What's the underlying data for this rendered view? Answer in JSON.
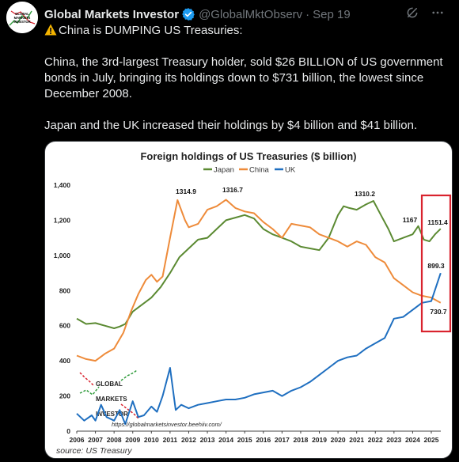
{
  "tweet": {
    "display_name": "Global Markets Investor",
    "handle": "@GlobalMktObserv",
    "separator": "·",
    "date": "Sep 19",
    "paragraphs": [
      "China is DUMPING US Treasuries:",
      "China, the 3rd-largest Treasury holder, sold $26 BILLION of US government bonds in July, bringing its holdings down to $731 billion, the lowest since December 2008.",
      "Japan and the UK increased their holdings by $4 billion and $41 billion."
    ],
    "icons": [
      "warning-icon",
      "verified-badge-icon",
      "grok-icon",
      "more-icon"
    ],
    "avatar_text": [
      "GLOBAL",
      "MARKETS",
      "INVESTOR"
    ]
  },
  "colors": {
    "background": "#000000",
    "text": "#e7e9ea",
    "muted": "#71767b",
    "verified": "#1d9bf0",
    "japan": "#5b8a32",
    "china": "#ee8b3a",
    "uk": "#1f6fc0",
    "highlight_box": "#d9232e"
  },
  "chart_data": {
    "type": "line",
    "title": "Foreign holdings of US Treasuries ($ billion)",
    "legend": [
      "Japan",
      "China",
      "UK"
    ],
    "legend_position": "top",
    "ylim": [
      0,
      1400
    ],
    "yticks": [
      "0",
      "200",
      "400",
      "600",
      "800",
      "1,000",
      "1,200",
      "1,400"
    ],
    "xticks": [
      "2006",
      "2007",
      "2008",
      "2009",
      "2010",
      "2011",
      "2012",
      "2013",
      "2014",
      "2015",
      "2016",
      "2017",
      "2018",
      "2019",
      "2020",
      "2021",
      "2022",
      "2023",
      "2024",
      "2025"
    ],
    "grid": false,
    "series": [
      {
        "name": "Japan",
        "x": [
          2006.0,
          2006.5,
          2007.0,
          2007.5,
          2008.0,
          2008.3,
          2008.6,
          2009.0,
          2009.5,
          2010.0,
          2010.5,
          2011.0,
          2011.5,
          2012.0,
          2012.5,
          2013.0,
          2013.5,
          2014.0,
          2014.5,
          2015.0,
          2015.5,
          2016.0,
          2016.5,
          2017.0,
          2017.5,
          2018.0,
          2018.5,
          2019.0,
          2019.5,
          2020.0,
          2020.3,
          2020.6,
          2021.0,
          2021.5,
          2021.9,
          2022.3,
          2022.7,
          2023.0,
          2023.5,
          2024.0,
          2024.3,
          2024.6,
          2024.9,
          2025.2,
          2025.5
        ],
        "y": [
          640,
          610,
          615,
          600,
          585,
          595,
          610,
          680,
          720,
          760,
          820,
          900,
          990,
          1040,
          1090,
          1100,
          1150,
          1200,
          1215,
          1230,
          1210,
          1150,
          1120,
          1100,
          1080,
          1050,
          1040,
          1030,
          1100,
          1230,
          1280,
          1270,
          1260,
          1290,
          1310,
          1230,
          1150,
          1080,
          1100,
          1120,
          1167,
          1090,
          1080,
          1120,
          1151.4
        ]
      },
      {
        "name": "China",
        "x": [
          2006.0,
          2006.5,
          2007.0,
          2007.5,
          2008.0,
          2008.5,
          2008.9,
          2009.3,
          2009.7,
          2010.0,
          2010.3,
          2010.6,
          2011.0,
          2011.4,
          2011.8,
          2012.0,
          2012.5,
          2013.0,
          2013.5,
          2014.0,
          2014.5,
          2015.0,
          2015.5,
          2016.0,
          2016.5,
          2017.0,
          2017.5,
          2018.0,
          2018.5,
          2019.0,
          2019.5,
          2020.0,
          2020.5,
          2021.0,
          2021.5,
          2022.0,
          2022.5,
          2023.0,
          2023.5,
          2024.0,
          2024.5,
          2025.0,
          2025.5
        ],
        "y": [
          430,
          410,
          400,
          440,
          470,
          560,
          680,
          780,
          860,
          890,
          850,
          880,
          1100,
          1314.9,
          1200,
          1160,
          1180,
          1260,
          1280,
          1316.7,
          1270,
          1250,
          1240,
          1190,
          1150,
          1100,
          1180,
          1170,
          1160,
          1120,
          1100,
          1080,
          1050,
          1080,
          1060,
          990,
          960,
          870,
          830,
          790,
          770,
          760,
          730.7
        ]
      },
      {
        "name": "UK",
        "x": [
          2006.0,
          2006.4,
          2006.8,
          2007.0,
          2007.3,
          2007.6,
          2008.0,
          2008.3,
          2008.6,
          2009.0,
          2009.3,
          2009.6,
          2010.0,
          2010.3,
          2010.6,
          2011.0,
          2011.3,
          2011.6,
          2012.0,
          2012.5,
          2013.0,
          2013.5,
          2014.0,
          2014.5,
          2015.0,
          2015.5,
          2016.0,
          2016.5,
          2017.0,
          2017.5,
          2018.0,
          2018.5,
          2019.0,
          2019.5,
          2020.0,
          2020.5,
          2021.0,
          2021.5,
          2022.0,
          2022.5,
          2023.0,
          2023.5,
          2024.0,
          2024.5,
          2025.0,
          2025.5
        ],
        "y": [
          100,
          60,
          90,
          60,
          150,
          80,
          60,
          120,
          40,
          170,
          80,
          90,
          140,
          110,
          200,
          360,
          120,
          150,
          130,
          150,
          160,
          170,
          180,
          180,
          190,
          210,
          220,
          230,
          200,
          230,
          250,
          280,
          320,
          360,
          400,
          420,
          430,
          470,
          500,
          530,
          640,
          650,
          690,
          730,
          740,
          899.3
        ]
      }
    ],
    "annotations": [
      "1314.9",
      "1316.7",
      "1310.2",
      "1167",
      "1151.4",
      "899.3",
      "730.7"
    ],
    "watermark_url": "https://globalmarketsinvestor.beehiiv.com/",
    "watermark_lines": [
      "GLOBAL",
      "MARKETS",
      "INVESTOR"
    ],
    "source": "source: US Treasury"
  }
}
